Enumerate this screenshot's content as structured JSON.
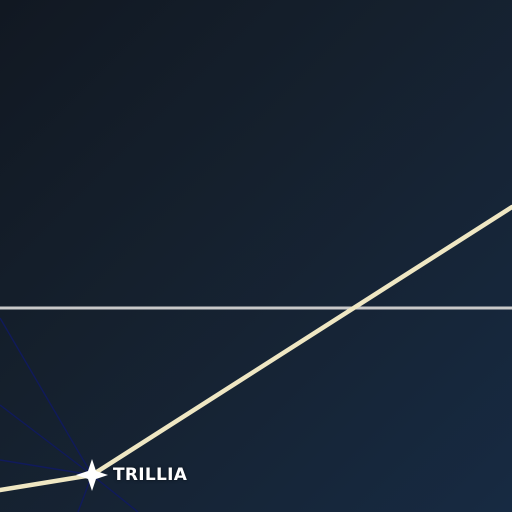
{
  "map": {
    "style": "dark",
    "colors": {
      "background_top_left": "#111822",
      "background_bottom_right": "#172a42",
      "route": "#efe7c3",
      "horizontal_line": "#c9c9c9",
      "minor_lines": "#101a5c",
      "marker": "#ffffff"
    },
    "place": {
      "name": "TRILLIA",
      "marker_icon": "four-point-star-icon"
    }
  }
}
